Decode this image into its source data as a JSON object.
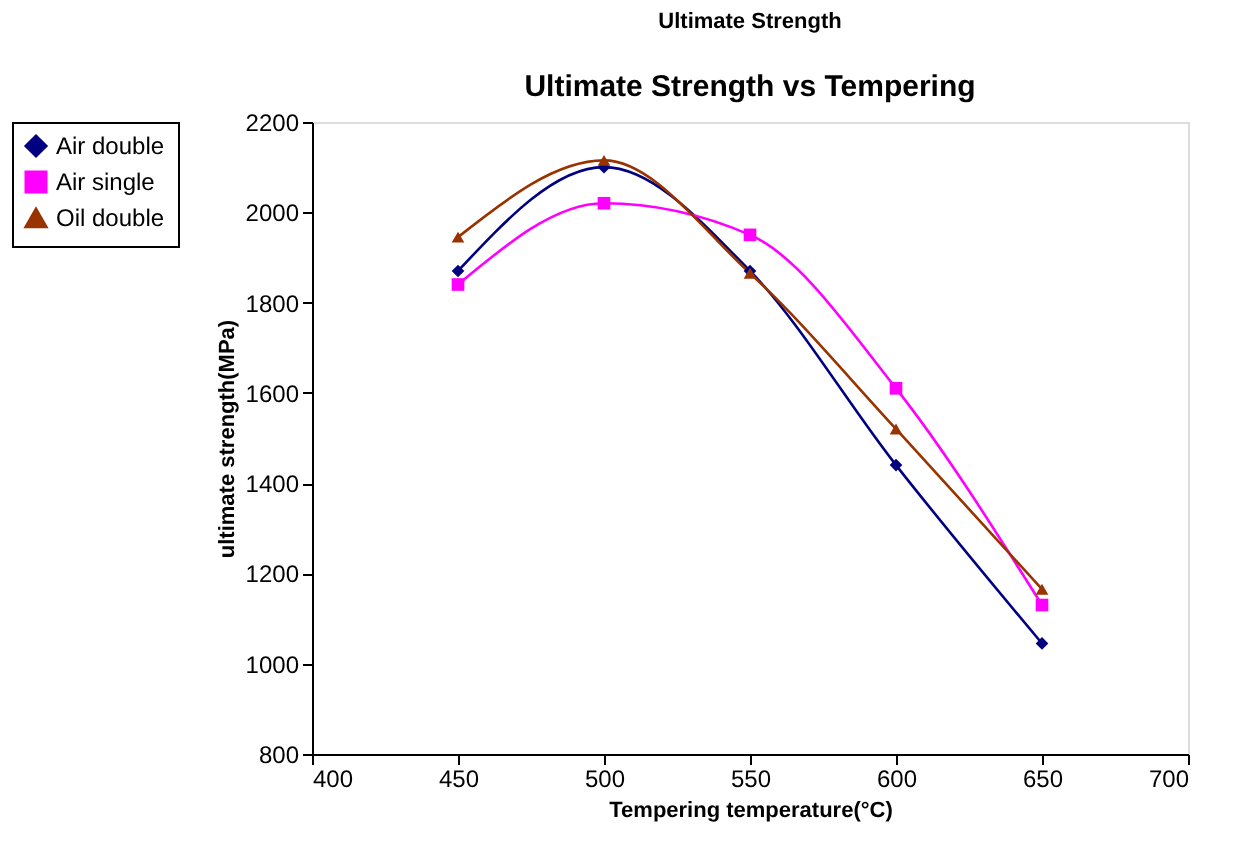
{
  "chart_data": {
    "type": "line",
    "title": "Ultimate Strength",
    "subtitle": "Ultimate Strength vs Tempering",
    "xlabel": "Tempering    temperature(°C)",
    "ylabel": "ultimate strength(MPa)",
    "x": [
      450,
      500,
      550,
      600,
      650
    ],
    "series": [
      {
        "name": "Air double",
        "color": "#000080",
        "marker": "diamond",
        "values": [
          1870,
          2100,
          1870,
          1440,
          1045
        ]
      },
      {
        "name": "Air single",
        "color": "#ff00ff",
        "marker": "square",
        "values": [
          1840,
          2020,
          1950,
          1610,
          1130
        ]
      },
      {
        "name": "Oil double",
        "color": "#993300",
        "marker": "triangle",
        "values": [
          1945,
          2115,
          1865,
          1520,
          1165
        ]
      }
    ],
    "xlim": [
      400,
      700
    ],
    "xticks": [
      400,
      450,
      500,
      550,
      600,
      650,
      700
    ],
    "ylim": [
      800,
      2200
    ],
    "yticks": [
      800,
      1000,
      1200,
      1400,
      1600,
      1800,
      2000,
      2200
    ],
    "grid": false,
    "legend": "left",
    "line_style": "solid"
  }
}
